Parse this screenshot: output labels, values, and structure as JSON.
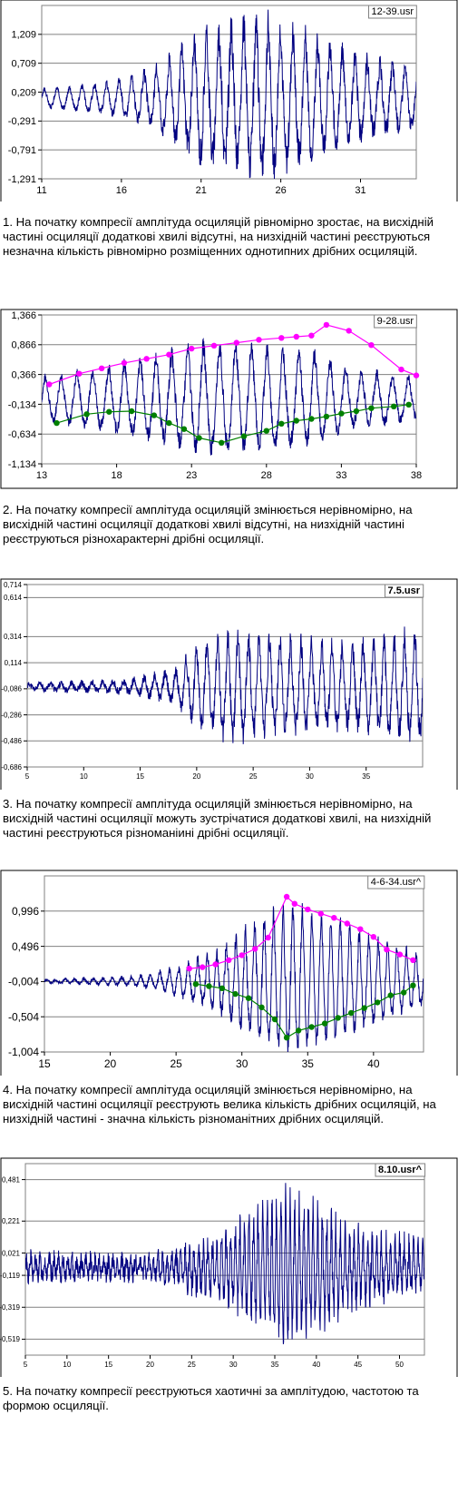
{
  "chart_data": [
    {
      "type": "line",
      "file_label": "12-39.usr",
      "xlim": [
        11,
        34.5
      ],
      "ylim": [
        -1.291,
        1.709
      ],
      "xticks": [
        "11",
        "16",
        "21",
        "26",
        "31"
      ],
      "yticks": [
        "1,209",
        "0,709",
        "0,209",
        "-0,291",
        "-0,791",
        "-1,291"
      ],
      "series": [
        {
          "type": "oscillogram",
          "color": "#000080",
          "baseline": 0.1,
          "segments": [
            [
              11,
              0.15,
              0.04
            ],
            [
              15,
              0.25,
              0.06
            ],
            [
              18,
              0.45,
              0.12
            ],
            [
              21,
              1.05,
              0.28
            ],
            [
              25,
              1.25,
              0.35
            ],
            [
              26,
              1.2,
              0.3
            ],
            [
              29,
              0.85,
              0.22
            ],
            [
              32,
              0.6,
              0.18
            ],
            [
              34.4,
              0.5,
              0.12
            ]
          ],
          "period": 0.78,
          "seed": 3
        }
      ],
      "caption": "1. На початку компресії амплітуда осциляцій рівномірно зростає, на висхідній частині осциляції додаткові хвилі відсутні, на низхідній частині реєструються незначна кількість  рівномірно розміщенних однотипних дрібних осциляцій."
    },
    {
      "type": "line",
      "file_label": "9-28.usr",
      "xlim": [
        13,
        38
      ],
      "ylim": [
        -1.134,
        1.366
      ],
      "xticks": [
        "13",
        "18",
        "23",
        "28",
        "33",
        "38"
      ],
      "yticks": [
        "1,366",
        "0,866",
        "0,366",
        "-0,134",
        "-0,634",
        "-1,134"
      ],
      "series": [
        {
          "type": "oscillogram",
          "color": "#000080",
          "baseline": -0.05,
          "segments": [
            [
              13,
              0.35,
              0.08
            ],
            [
              17,
              0.5,
              0.1
            ],
            [
              21,
              0.7,
              0.14
            ],
            [
              24,
              0.9,
              0.16
            ],
            [
              27,
              0.85,
              0.14
            ],
            [
              31,
              0.75,
              0.14
            ],
            [
              34,
              0.45,
              0.1
            ],
            [
              38,
              0.35,
              0.08
            ]
          ],
          "period": 1.05,
          "seed": 7
        },
        {
          "type": "envelope",
          "color": "#ff00ff",
          "x": [
            13.5,
            15.5,
            17,
            18.5,
            20,
            21.5,
            23,
            24.5,
            26,
            27.5,
            29,
            30,
            31,
            32,
            33.5,
            35,
            37,
            38
          ],
          "y": [
            0.2,
            0.38,
            0.47,
            0.56,
            0.63,
            0.7,
            0.8,
            0.85,
            0.9,
            0.95,
            0.98,
            1.0,
            1.02,
            1.2,
            1.1,
            0.86,
            0.45,
            0.35
          ]
        },
        {
          "type": "envelope",
          "color": "#008000",
          "x": [
            14,
            16,
            17.5,
            19,
            20.5,
            21.5,
            22.5,
            23.5,
            25,
            26.5,
            28,
            29,
            30,
            31,
            32,
            33,
            34,
            35,
            36.5,
            37.5
          ],
          "y": [
            -0.45,
            -0.3,
            -0.26,
            -0.25,
            -0.32,
            -0.45,
            -0.55,
            -0.7,
            -0.78,
            -0.67,
            -0.58,
            -0.46,
            -0.41,
            -0.38,
            -0.34,
            -0.29,
            -0.25,
            -0.2,
            -0.17,
            -0.14
          ]
        }
      ],
      "caption": "2. На початку компресії амплітуда осциляцій змінюється нерівномірно, на висхідній частині осциляції додаткові хвилі відсутні, на низхідній частині реєструються різнохарактерні дрібні осциляції."
    },
    {
      "type": "line",
      "file_label": "7.5.usr",
      "xlim": [
        5,
        40
      ],
      "ylim": [
        -0.686,
        0.714
      ],
      "xticks": [
        "5",
        "10",
        "15",
        "20",
        "25",
        "30",
        "35"
      ],
      "yticks": [
        "0,714",
        "0,614",
        "0,314",
        "0,114",
        "-0,086",
        "-0,286",
        "-0,486",
        "-0,686"
      ],
      "series": [
        {
          "type": "oscillogram",
          "color": "#000080",
          "baseline": -0.07,
          "segments": [
            [
              5,
              0.02,
              0.02
            ],
            [
              14,
              0.04,
              0.03
            ],
            [
              18,
              0.12,
              0.05
            ],
            [
              20,
              0.28,
              0.08
            ],
            [
              23,
              0.4,
              0.1
            ],
            [
              28,
              0.33,
              0.09
            ],
            [
              33,
              0.3,
              0.08
            ],
            [
              39.5,
              0.38,
              0.1
            ]
          ],
          "period": 0.92,
          "seed": 11
        }
      ],
      "caption": "3. На початку компресії амплітуда осциляцій змінюється нерівномірно, на висхідній частині осциляції можуть зустрічатися додаткові хвилі, на низхідній частині реєструються різноманіині дрібні осциляції."
    },
    {
      "type": "line",
      "file_label": "4-6-34.usr^",
      "xlim": [
        15,
        43.8
      ],
      "ylim": [
        -1.004,
        1.496
      ],
      "xticks": [
        "15",
        "20",
        "25",
        "30",
        "35",
        "40"
      ],
      "yticks": [
        "0,996",
        "0,496",
        "-0,004",
        "-0,504",
        "-1,004"
      ],
      "series": [
        {
          "type": "oscillogram",
          "color": "#000080",
          "baseline": 0.0,
          "segments": [
            [
              15,
              0.02,
              0.02
            ],
            [
              22,
              0.06,
              0.03
            ],
            [
              25,
              0.18,
              0.06
            ],
            [
              28,
              0.4,
              0.1
            ],
            [
              31,
              0.8,
              0.15
            ],
            [
              33.5,
              1.05,
              0.16
            ],
            [
              37,
              0.85,
              0.13
            ],
            [
              40,
              0.6,
              0.1
            ],
            [
              43.5,
              0.35,
              0.07
            ]
          ],
          "period": 0.72,
          "seed": 5
        },
        {
          "type": "envelope",
          "color": "#ff00ff",
          "x": [
            26,
            27,
            28,
            29,
            30,
            31,
            32,
            33.4,
            34,
            35,
            36,
            37,
            38,
            39,
            40,
            41,
            42,
            43
          ],
          "y": [
            0.18,
            0.2,
            0.24,
            0.3,
            0.37,
            0.46,
            0.62,
            1.2,
            1.1,
            1.02,
            0.96,
            0.9,
            0.82,
            0.74,
            0.63,
            0.45,
            0.38,
            0.3
          ]
        },
        {
          "type": "envelope",
          "color": "#008000",
          "x": [
            26.5,
            27.5,
            28.5,
            29.5,
            30.5,
            31.5,
            32.5,
            33.4,
            34.3,
            35.3,
            36.3,
            37.3,
            38.3,
            39.3,
            40.3,
            41.3,
            42.3,
            43
          ],
          "y": [
            -0.04,
            -0.07,
            -0.1,
            -0.18,
            -0.24,
            -0.37,
            -0.54,
            -0.8,
            -0.7,
            -0.65,
            -0.6,
            -0.52,
            -0.45,
            -0.38,
            -0.3,
            -0.2,
            -0.16,
            -0.06
          ]
        }
      ],
      "caption": "4. На початку компресії амплітуда осциляцій змінюється нерівномірно, на висхідній частині осциляції реєструють велика кількість дрібних осциляцій, на низхідній частині - значна кількість різноманітних дрібних осциляцій."
    },
    {
      "type": "line",
      "file_label": "8.10.usr^",
      "xlim": [
        5,
        53
      ],
      "ylim": [
        -0.619,
        0.581
      ],
      "xticks": [
        "5",
        "10",
        "15",
        "20",
        "25",
        "30",
        "35",
        "40",
        "45",
        "50"
      ],
      "yticks": [
        "0,481",
        "0,221",
        "0,021",
        "-0,119",
        "-0,319",
        "-0,519"
      ],
      "series": [
        {
          "type": "oscillogram",
          "color": "#000080",
          "baseline": -0.07,
          "segments": [
            [
              5,
              0.06,
              0.06
            ],
            [
              8,
              0.05,
              0.06
            ],
            [
              20,
              0.05,
              0.06
            ],
            [
              27,
              0.14,
              0.09
            ],
            [
              32,
              0.28,
              0.1
            ],
            [
              36,
              0.42,
              0.12
            ],
            [
              40,
              0.36,
              0.12
            ],
            [
              45,
              0.2,
              0.1
            ],
            [
              52.5,
              0.13,
              0.08
            ]
          ],
          "period": 0.55,
          "seed": 13
        }
      ],
      "caption": "5. На початку компресії реєструються хаотичні за амплітудою, частотою та формою осциляції."
    }
  ]
}
